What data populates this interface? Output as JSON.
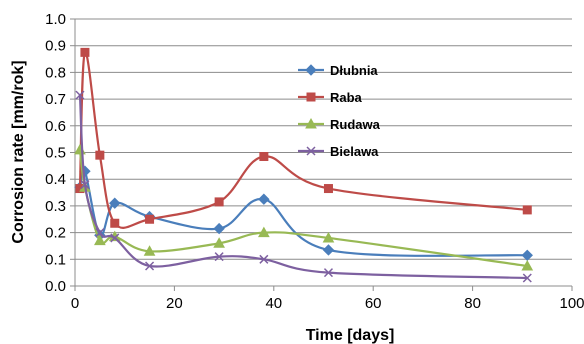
{
  "chart_data": {
    "type": "line",
    "title": "",
    "xlabel": "Time [days]",
    "ylabel": "Corrosion rate [mm/rok]",
    "xlim": [
      0,
      100
    ],
    "ylim": [
      0.0,
      1.0
    ],
    "x_ticks": [
      0,
      20,
      40,
      60,
      80,
      100
    ],
    "y_ticks": [
      0.0,
      0.1,
      0.2,
      0.3,
      0.4,
      0.5,
      0.6,
      0.7,
      0.8,
      0.9,
      1.0
    ],
    "x_tick_labels": [
      "0",
      "20",
      "40",
      "60",
      "80",
      "100"
    ],
    "y_tick_labels": [
      "0.0",
      "0.1",
      "0.2",
      "0.3",
      "0.4",
      "0.5",
      "0.6",
      "0.7",
      "0.8",
      "0.9",
      "1.0"
    ],
    "grid": "horizontal",
    "legend_position": "center",
    "series": [
      {
        "name": "Dłubnia",
        "color": "#4a7ebb",
        "marker": "diamond",
        "x": [
          1,
          2,
          5,
          8,
          15,
          29,
          38,
          51,
          91
        ],
        "y": [
          0.37,
          0.43,
          0.19,
          0.31,
          0.26,
          0.215,
          0.325,
          0.135,
          0.115
        ]
      },
      {
        "name": "Raba",
        "color": "#be4b48",
        "marker": "square",
        "x": [
          1,
          2,
          5,
          8,
          15,
          29,
          38,
          51,
          91
        ],
        "y": [
          0.365,
          0.875,
          0.49,
          0.235,
          0.25,
          0.315,
          0.485,
          0.365,
          0.285
        ]
      },
      {
        "name": "Rudawa",
        "color": "#98b954",
        "marker": "triangle",
        "x": [
          1,
          2,
          5,
          8,
          15,
          29,
          38,
          51,
          91
        ],
        "y": [
          0.51,
          0.37,
          0.17,
          0.185,
          0.13,
          0.16,
          0.2,
          0.18,
          0.075
        ]
      },
      {
        "name": "Bielawa",
        "color": "#7d60a0",
        "marker": "x",
        "x": [
          1,
          2,
          5,
          8,
          15,
          29,
          38,
          51,
          91
        ],
        "y": [
          0.715,
          0.38,
          0.2,
          0.18,
          0.075,
          0.11,
          0.1,
          0.05,
          0.03
        ]
      }
    ]
  }
}
